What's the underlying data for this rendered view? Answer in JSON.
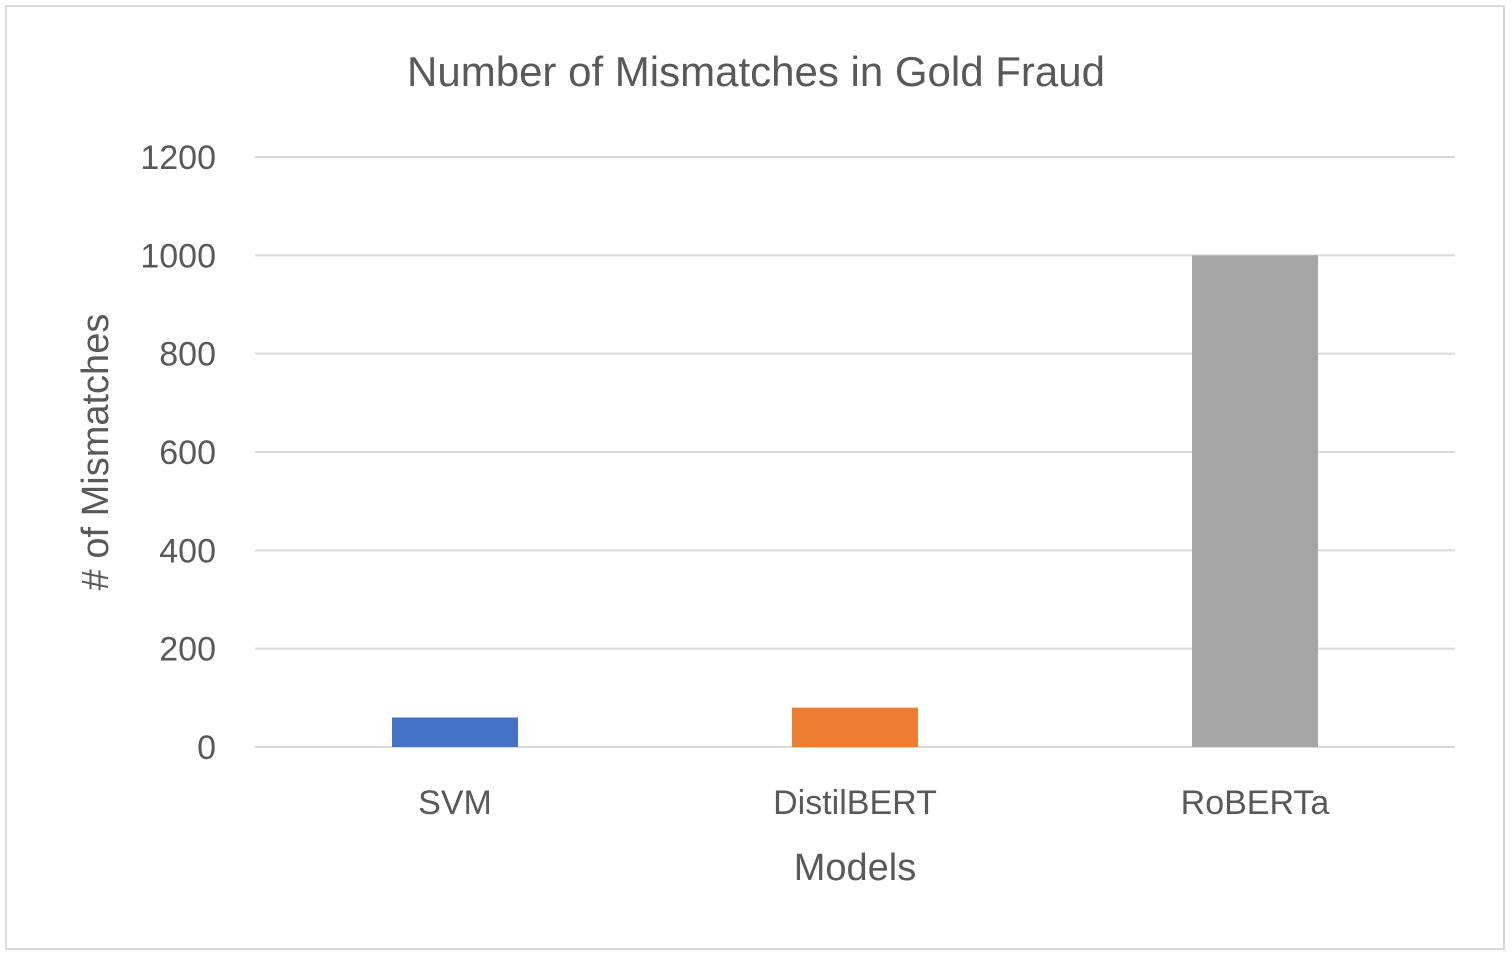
{
  "chart_data": {
    "type": "bar",
    "title": "Number of Mismatches in Gold Fraud",
    "xlabel": "Models",
    "ylabel": "# of Mismatches",
    "categories": [
      "SVM",
      "DistilBERT",
      "RoBERTa"
    ],
    "values": [
      60,
      80,
      1000
    ],
    "colors": [
      "#4472c4",
      "#ed7d31",
      "#a5a5a5"
    ],
    "ylim": [
      0,
      1200
    ],
    "yticks": [
      0,
      200,
      400,
      600,
      800,
      1000,
      1200
    ],
    "grid": true,
    "legend": "none"
  }
}
